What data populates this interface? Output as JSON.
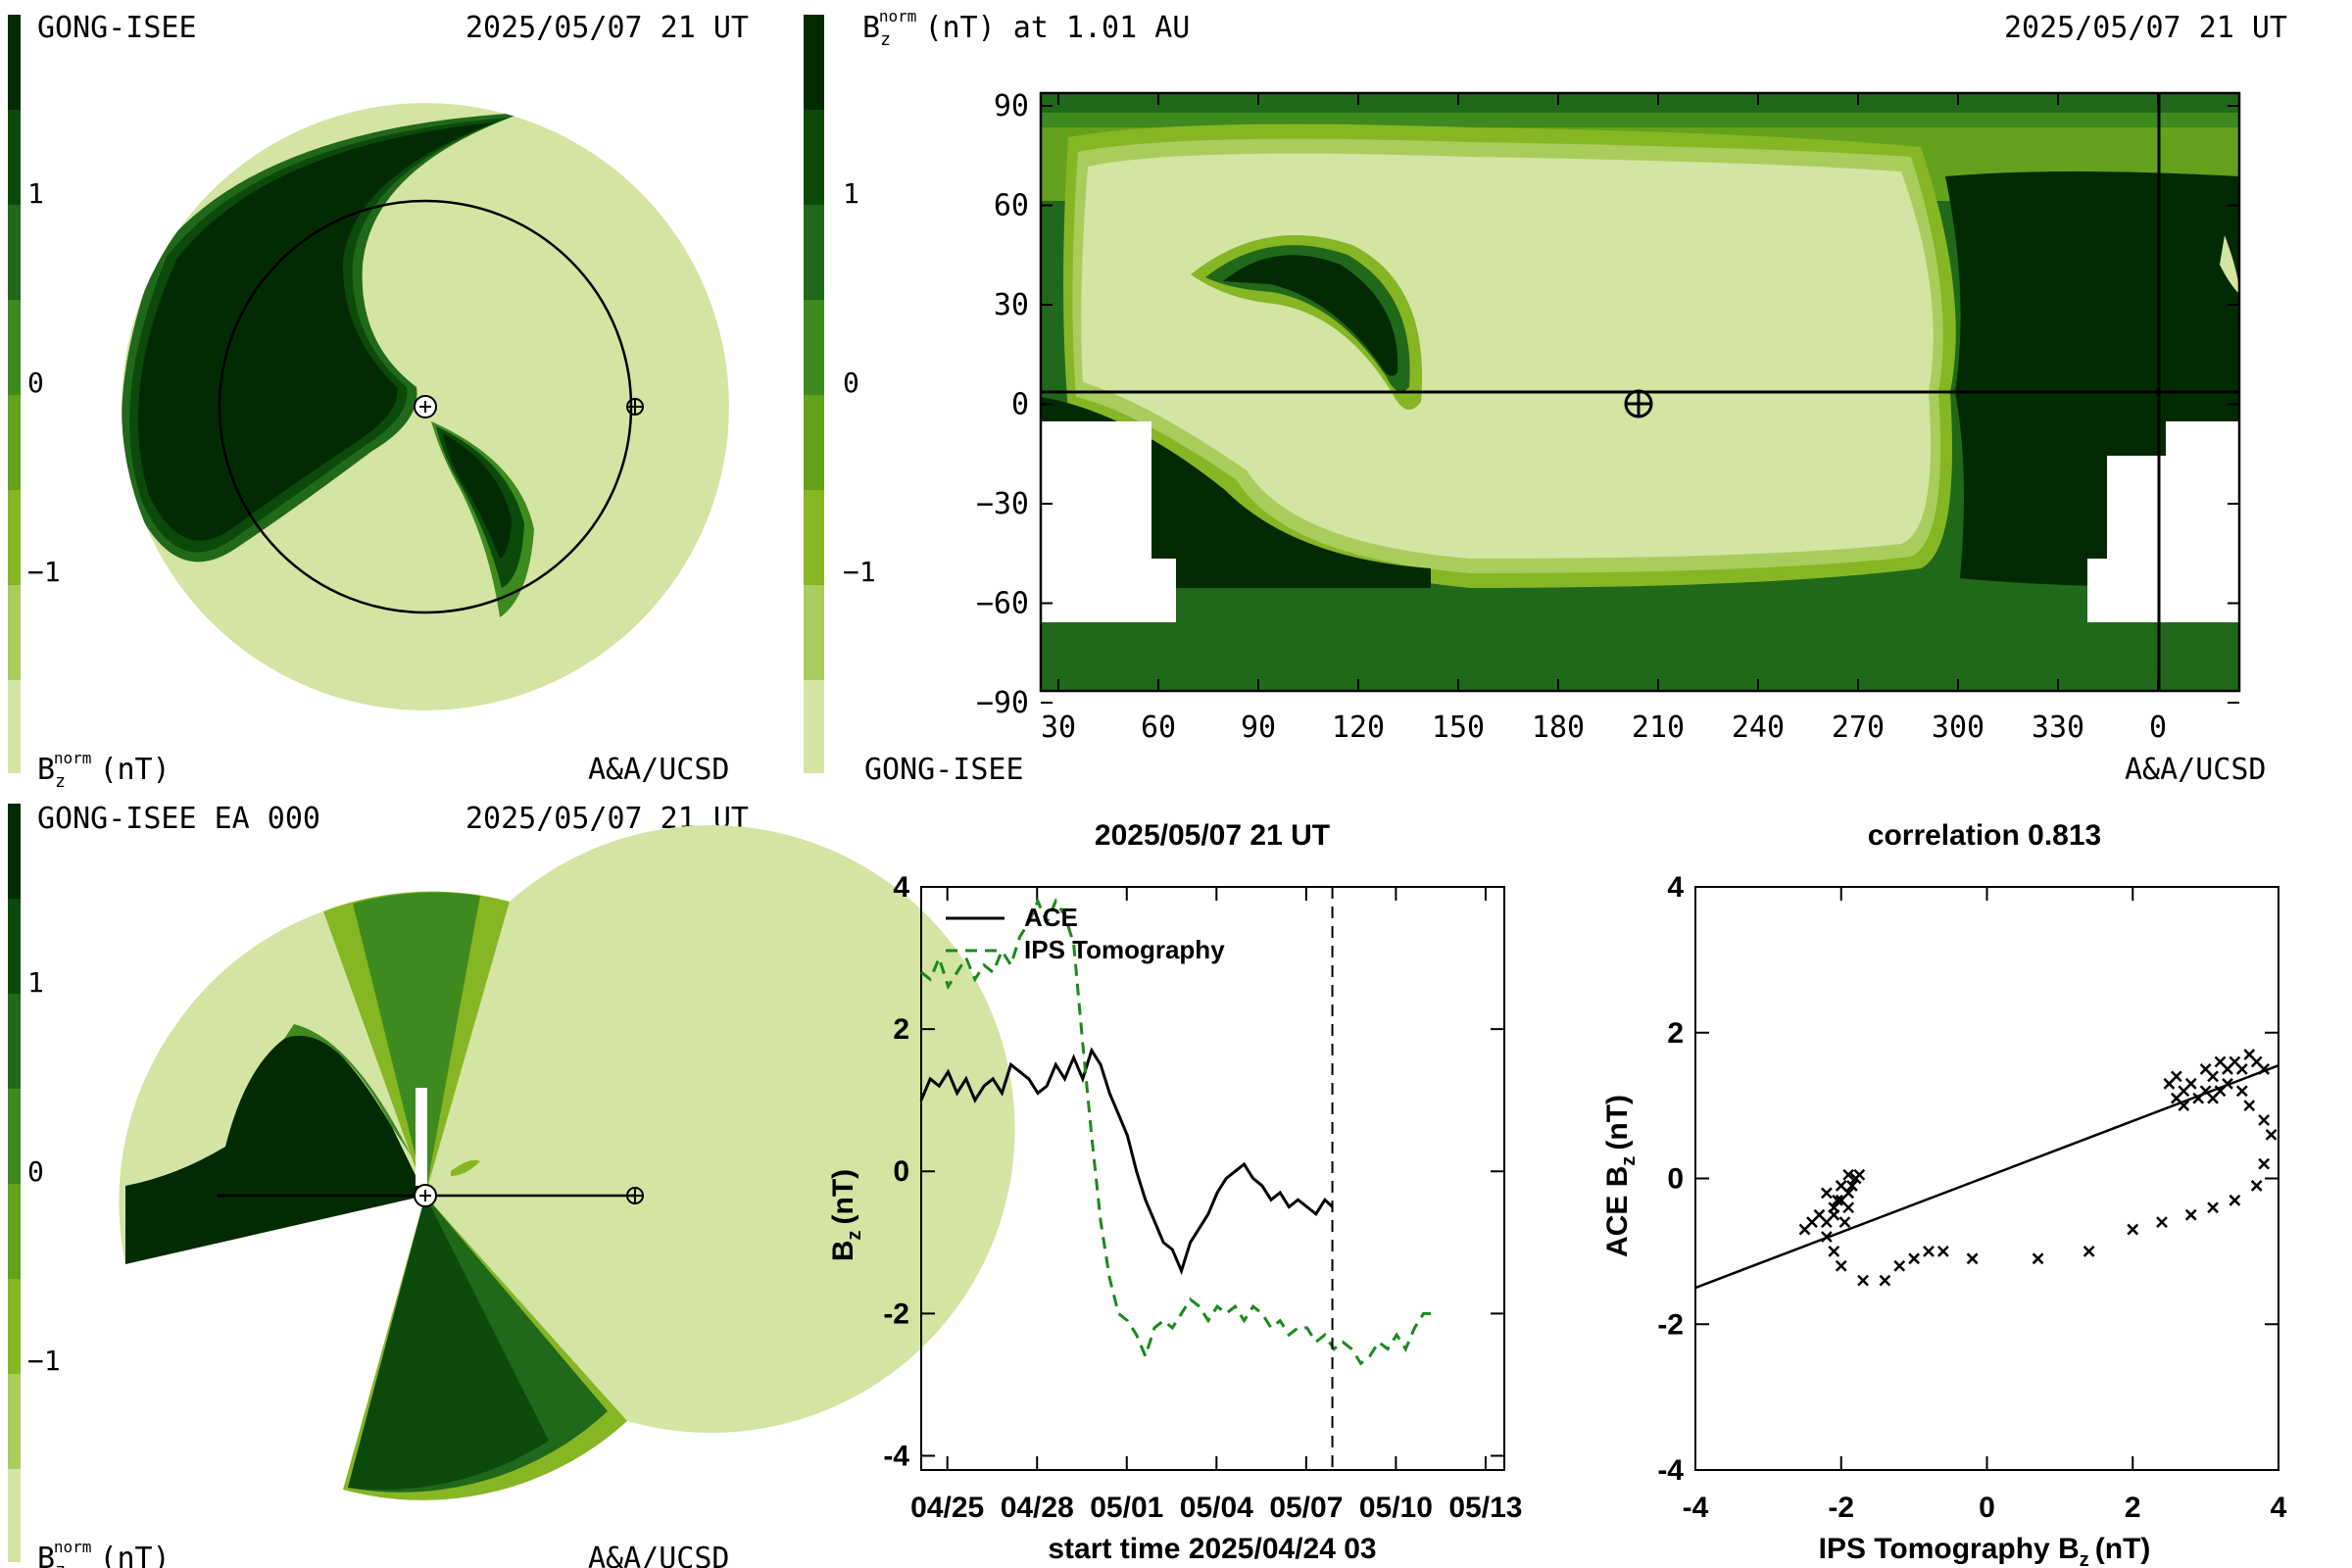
{
  "panel_tl": {
    "source": "GONG-ISEE",
    "time": "2025/05/07 21 UT",
    "colorbar_label": "B",
    "colorbar_label_sub": "z",
    "colorbar_label_sup": "norm",
    "colorbar_label_unit": "(nT)",
    "credit": "A&A/UCSD",
    "ticks": [
      "1",
      "0",
      "−1"
    ]
  },
  "panel_tr": {
    "title_main": "B",
    "title_sub": "z",
    "title_sup": "norm",
    "title_rest": "(nT) at 1.01 AU",
    "time": "2025/05/07 21 UT",
    "source": "GONG-ISEE",
    "credit": "A&A/UCSD",
    "colorbar_ticks": [
      "1",
      "0",
      "−1"
    ],
    "lat_ticks": [
      "90",
      "60",
      "30",
      "0",
      "−30",
      "−60",
      "−90"
    ],
    "lon_ticks": [
      "30",
      "60",
      "90",
      "120",
      "150",
      "180",
      "210",
      "240",
      "270",
      "300",
      "330",
      "0"
    ]
  },
  "panel_bl": {
    "source": "GONG-ISEE EA 000",
    "time": "2025/05/07 21 UT",
    "colorbar_label": "B",
    "colorbar_label_sub": "z",
    "colorbar_label_sup": "norm",
    "colorbar_label_unit": "(nT)",
    "credit": "A&A/UCSD",
    "ticks": [
      "1",
      "0",
      "−1"
    ]
  },
  "colors": {
    "c1": "#032b03",
    "c2": "#0c4a0c",
    "c3": "#21691a",
    "c4": "#3e8a1f",
    "c5": "#64a11c",
    "c6": "#86b624",
    "c7": "#a9cd5c",
    "c8": "#d3e4a3",
    "ips_line": "#1a8a1a"
  },
  "chart_data": [
    {
      "type": "line",
      "title": "2025/05/07 21 UT",
      "xlabel": "start time 2025/04/24 03",
      "ylabel_main": "B",
      "ylabel_sub": "z",
      "ylabel_unit": "(nT)",
      "x_tick_labels": [
        "04/25",
        "04/28",
        "05/01",
        "05/04",
        "05/07",
        "05/10",
        "05/13"
      ],
      "x_tick_days": [
        0.875,
        3.875,
        6.875,
        9.875,
        12.875,
        15.875,
        18.875
      ],
      "y_tick_labels": [
        "4",
        "2",
        "0",
        "-2",
        "-4"
      ],
      "xlim_days": [
        0,
        19.5
      ],
      "ylim": [
        -4.2,
        4.0
      ],
      "vline_day": 13.75,
      "legend": [
        "ACE",
        "IPS Tomography"
      ],
      "series": [
        {
          "name": "ACE",
          "style": "solid",
          "x_days": [
            0,
            0.3,
            0.6,
            0.9,
            1.2,
            1.5,
            1.8,
            2.1,
            2.4,
            2.7,
            3.0,
            3.3,
            3.6,
            3.9,
            4.2,
            4.5,
            4.8,
            5.1,
            5.4,
            5.7,
            6.0,
            6.3,
            6.6,
            6.9,
            7.2,
            7.5,
            7.8,
            8.1,
            8.4,
            8.7,
            9.0,
            9.3,
            9.6,
            9.9,
            10.2,
            10.5,
            10.8,
            11.1,
            11.4,
            11.7,
            12.0,
            12.3,
            12.6,
            12.9,
            13.2,
            13.5,
            13.75
          ],
          "values": [
            1.0,
            1.3,
            1.2,
            1.4,
            1.1,
            1.3,
            1.0,
            1.2,
            1.3,
            1.1,
            1.5,
            1.4,
            1.3,
            1.1,
            1.2,
            1.5,
            1.3,
            1.6,
            1.3,
            1.7,
            1.5,
            1.1,
            0.8,
            0.5,
            0.0,
            -0.4,
            -0.7,
            -1.0,
            -1.1,
            -1.4,
            -1.0,
            -0.8,
            -0.6,
            -0.3,
            -0.1,
            0.0,
            0.1,
            -0.1,
            -0.2,
            -0.4,
            -0.3,
            -0.5,
            -0.4,
            -0.5,
            -0.6,
            -0.4,
            -0.5
          ]
        },
        {
          "name": "IPS Tomography",
          "style": "dashed",
          "x_days": [
            0,
            0.3,
            0.6,
            0.9,
            1.2,
            1.5,
            1.8,
            2.1,
            2.4,
            2.7,
            3.0,
            3.3,
            3.6,
            3.9,
            4.2,
            4.5,
            4.8,
            5.1,
            5.4,
            5.7,
            6.0,
            6.3,
            6.6,
            6.9,
            7.2,
            7.5,
            7.8,
            8.1,
            8.4,
            8.7,
            9.0,
            9.3,
            9.6,
            9.9,
            10.2,
            10.5,
            10.8,
            11.1,
            11.4,
            11.7,
            12.0,
            12.3,
            12.6,
            12.9,
            13.2,
            13.5,
            13.8,
            14.1,
            14.4,
            14.7,
            15.0,
            15.3,
            15.6,
            15.9,
            16.2,
            16.5,
            16.8,
            17.1
          ],
          "values": [
            2.8,
            2.7,
            3.0,
            2.6,
            2.8,
            3.0,
            2.7,
            2.9,
            2.8,
            3.1,
            2.9,
            3.3,
            3.5,
            3.8,
            3.5,
            3.8,
            3.6,
            3.2,
            1.8,
            0.5,
            -0.7,
            -1.5,
            -2.0,
            -2.1,
            -2.3,
            -2.6,
            -2.2,
            -2.1,
            -2.2,
            -2.0,
            -1.8,
            -1.9,
            -2.1,
            -1.9,
            -2.0,
            -1.9,
            -2.1,
            -1.9,
            -2.0,
            -2.2,
            -2.1,
            -2.3,
            -2.2,
            -2.2,
            -2.4,
            -2.3,
            -2.5,
            -2.4,
            -2.5,
            -2.7,
            -2.6,
            -2.4,
            -2.5,
            -2.3,
            -2.5,
            -2.2,
            -2.0,
            -2.0
          ]
        }
      ]
    },
    {
      "type": "scatter",
      "title": "correlation 0.813",
      "xlabel_main": "IPS Tomography B",
      "xlabel_sub": "z",
      "xlabel_unit": "(nT)",
      "ylabel_main": "ACE B",
      "ylabel_sub": "z",
      "ylabel_unit": "(nT)",
      "x_tick_labels": [
        "-4",
        "-2",
        "0",
        "2",
        "4"
      ],
      "y_tick_labels": [
        "4",
        "2",
        "0",
        "-2",
        "-4"
      ],
      "xlim": [
        -4,
        4
      ],
      "ylim": [
        -4,
        4
      ],
      "fit_line": [
        [
          -4,
          -1.5
        ],
        [
          4,
          1.55
        ]
      ],
      "points": [
        [
          -2.5,
          -0.7
        ],
        [
          -2.4,
          -0.6
        ],
        [
          -2.3,
          -0.5
        ],
        [
          -2.2,
          -0.6
        ],
        [
          -2.1,
          -0.4
        ],
        [
          -2.0,
          -0.3
        ],
        [
          -1.9,
          -0.2
        ],
        [
          -1.8,
          0.0
        ],
        [
          -2.2,
          -0.2
        ],
        [
          -2.1,
          -0.5
        ],
        [
          -2.0,
          -0.1
        ],
        [
          -1.9,
          0.05
        ],
        [
          -2.2,
          -0.8
        ],
        [
          -2.1,
          -1.0
        ],
        [
          -2.0,
          -1.2
        ],
        [
          -1.9,
          -0.4
        ],
        [
          -2.05,
          -0.3
        ],
        [
          -1.95,
          -0.6
        ],
        [
          -1.85,
          -0.1
        ],
        [
          -1.75,
          0.05
        ],
        [
          -1.7,
          -1.4
        ],
        [
          -1.4,
          -1.4
        ],
        [
          -1.2,
          -1.2
        ],
        [
          -1.0,
          -1.1
        ],
        [
          -0.8,
          -1.0
        ],
        [
          -0.6,
          -1.0
        ],
        [
          -0.2,
          -1.1
        ],
        [
          0.7,
          -1.1
        ],
        [
          1.4,
          -1.0
        ],
        [
          2.0,
          -0.7
        ],
        [
          2.4,
          -0.6
        ],
        [
          2.8,
          -0.5
        ],
        [
          3.1,
          -0.4
        ],
        [
          3.4,
          -0.3
        ],
        [
          3.7,
          -0.1
        ],
        [
          3.8,
          0.2
        ],
        [
          3.9,
          0.6
        ],
        [
          3.8,
          0.8
        ],
        [
          3.6,
          1.0
        ],
        [
          3.5,
          1.2
        ],
        [
          2.5,
          1.3
        ],
        [
          2.6,
          1.1
        ],
        [
          2.7,
          1.2
        ],
        [
          2.8,
          1.3
        ],
        [
          2.9,
          1.1
        ],
        [
          3.0,
          1.2
        ],
        [
          3.1,
          1.4
        ],
        [
          3.2,
          1.2
        ],
        [
          3.3,
          1.5
        ],
        [
          3.4,
          1.6
        ],
        [
          3.5,
          1.5
        ],
        [
          3.6,
          1.7
        ],
        [
          3.7,
          1.6
        ],
        [
          3.8,
          1.5
        ],
        [
          2.6,
          1.4
        ],
        [
          2.7,
          1.0
        ],
        [
          3.0,
          1.5
        ],
        [
          3.1,
          1.1
        ],
        [
          3.3,
          1.3
        ],
        [
          3.2,
          1.6
        ]
      ]
    }
  ]
}
